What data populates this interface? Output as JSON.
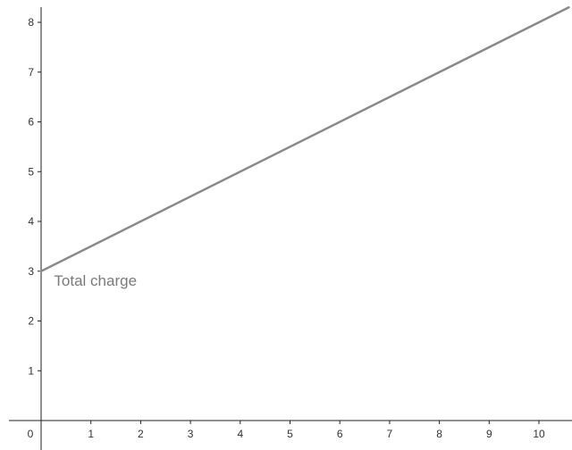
{
  "chart_data": {
    "type": "line",
    "title": "",
    "xlabel": "",
    "ylabel": "",
    "xlim": [
      0,
      10.6
    ],
    "ylim": [
      0,
      8.3
    ],
    "grid": false,
    "x_ticks": [
      1,
      2,
      3,
      4,
      5,
      6,
      7,
      8,
      9,
      10
    ],
    "y_ticks": [
      1,
      2,
      3,
      4,
      5,
      6,
      7,
      8
    ],
    "origin_label": "0",
    "series": [
      {
        "x": [
          0,
          10.6
        ],
        "y": [
          3,
          8.3
        ],
        "color": "#8a8a8a"
      }
    ],
    "annotations": [
      {
        "text": "Total charge",
        "x": 0.25,
        "y": 3,
        "color": "#7a7a7a"
      }
    ]
  },
  "colors": {
    "axis": "#222222",
    "line": "#8a8a8a",
    "background": "#ffffff"
  }
}
